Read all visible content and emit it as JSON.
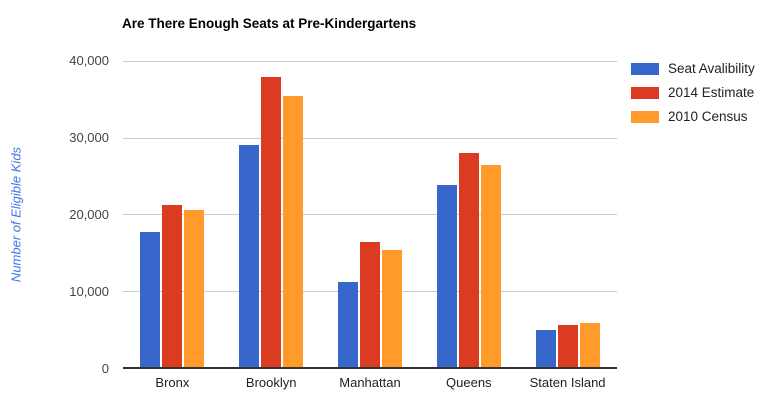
{
  "chart_data": {
    "type": "bar",
    "title": "Are There Enough Seats at Pre-Kindergartens",
    "categories": [
      "Bronx",
      "Brooklyn",
      "Manhattan",
      "Queens",
      "Staten Island"
    ],
    "series": [
      {
        "name": "Seat Avalibility",
        "color": "#3767cb",
        "values": [
          17700,
          29000,
          11100,
          23800,
          4800
        ]
      },
      {
        "name": "2014 Estimate",
        "color": "#da3b21",
        "values": [
          21200,
          37900,
          16300,
          28000,
          5500
        ]
      },
      {
        "name": "2010 Census",
        "color": "#ff9a2b",
        "values": [
          20500,
          35400,
          15300,
          26400,
          5700
        ]
      }
    ],
    "xlabel": "",
    "ylabel": "Number of Eligible Kids",
    "ylim": [
      0,
      40000
    ],
    "yticks": [
      0,
      10000,
      20000,
      30000,
      40000
    ],
    "ytick_labels": [
      "0",
      "10,000",
      "20,000",
      "30,000",
      "40,000"
    ],
    "grid": true,
    "legend_position": "right",
    "colors": {
      "axis_title": "#4374e8",
      "tick_label": "#444444",
      "gridline": "#cccccc",
      "baseline": "#333333",
      "title": "#000000"
    }
  }
}
